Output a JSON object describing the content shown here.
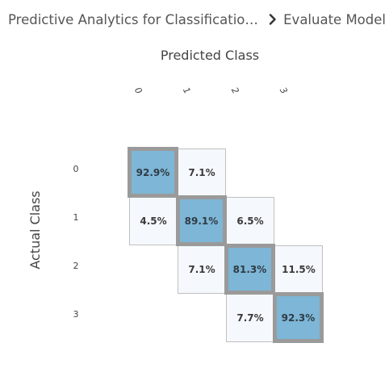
{
  "breadcrumb": {
    "parent": "Predictive Analytics for Classification and ...",
    "separator_icon": "chevron-right-icon",
    "current": "Evaluate Model"
  },
  "matrix": {
    "predicted_title": "Predicted Class",
    "actual_title": "Actual Class",
    "col_labels": [
      "0",
      "1",
      "2",
      "3"
    ],
    "row_labels": [
      "0",
      "1",
      "2",
      "3"
    ],
    "colors": {
      "diagonal_fill": "#7db6d6",
      "diagonal_border": "#9a9a9a",
      "offdiag_fill": "#f5f9fd",
      "offdiag_border": "#bfbfbf"
    },
    "cells": {
      "r0c0": "92.9%",
      "r0c1": "7.1%",
      "r1c0": "4.5%",
      "r1c1": "89.1%",
      "r1c2": "6.5%",
      "r2c1": "7.1%",
      "r2c2": "81.3%",
      "r2c3": "11.5%",
      "r3c2": "7.7%",
      "r3c3": "92.3%"
    }
  }
}
